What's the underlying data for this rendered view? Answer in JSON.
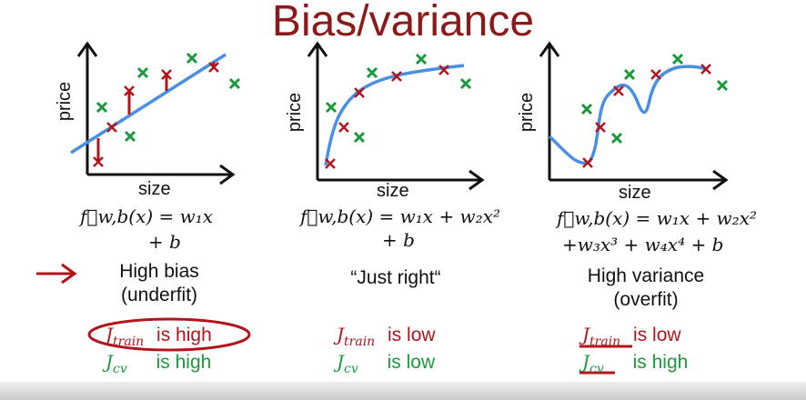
{
  "title": "Bias/variance",
  "panels": [
    {
      "y_label": "price",
      "x_label": "size",
      "formula_line1": "f⃗w,b(x) = w₁x",
      "formula_line2": "+ b",
      "description_line1": "High bias",
      "description_line2": "(underfit)",
      "j_train_symbol": "J",
      "j_train_sub": "train",
      "j_train_text": "is high",
      "j_cv_symbol": "J",
      "j_cv_sub": "cv",
      "j_cv_text": "is high"
    },
    {
      "y_label": "price",
      "x_label": "size",
      "formula_line1": "f⃗w,b(x) = w₁x + w₂x²",
      "formula_line2": "+ b",
      "description_line1": "“Just right“",
      "description_line2": "",
      "j_train_symbol": "J",
      "j_train_sub": "train",
      "j_train_text": "is low",
      "j_cv_symbol": "J",
      "j_cv_sub": "cv",
      "j_cv_text": "is low"
    },
    {
      "y_label": "price",
      "x_label": "size",
      "formula_line1": "f⃗w,b(x) = w₁x + w₂x²",
      "formula_line2": "+w₃x³ + w₄x⁴ + b",
      "description_line1": "High variance",
      "description_line2": "(overfit)",
      "j_train_symbol": "J",
      "j_train_sub": "train",
      "j_train_text": "is low",
      "j_cv_symbol": "J",
      "j_cv_sub": "cv",
      "j_cv_text": "is high"
    }
  ],
  "colors": {
    "title": "#8b1a1a",
    "curve": "#4a90e2",
    "train_marker": "#b0151b",
    "cv_marker": "#1a9a3c",
    "axis": "#111111",
    "annotation": "#b0151b"
  }
}
